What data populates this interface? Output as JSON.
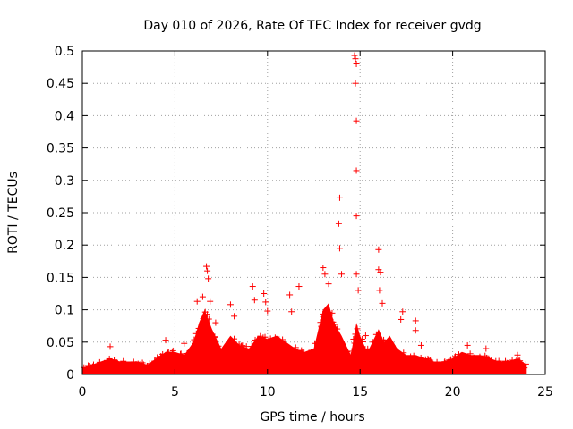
{
  "chart_data": {
    "type": "scatter",
    "title": "Day 010 of 2026, Rate Of TEC Index for receiver gvdg",
    "xlabel": "GPS time / hours",
    "ylabel": "ROTI / TECUs",
    "xlim": [
      0,
      25
    ],
    "ylim": [
      0,
      0.5
    ],
    "xticks": [
      "0",
      "5",
      "10",
      "15",
      "20",
      "25"
    ],
    "yticks": [
      "0",
      "0.05",
      "0.1",
      "0.15",
      "0.2",
      "0.25",
      "0.3",
      "0.35",
      "0.4",
      "0.45",
      "0.5"
    ],
    "grid": true,
    "marker": "+",
    "colors": {
      "series": "#ff0000",
      "grid": "#a0a0a0",
      "axis": "#000000"
    },
    "envelope": {
      "x": [
        0,
        0.5,
        1,
        1.5,
        2,
        2.5,
        3,
        3.5,
        4,
        4.5,
        5,
        5.5,
        6,
        6.3,
        6.6,
        7,
        7.5,
        8,
        8.5,
        9,
        9.5,
        10,
        10.5,
        11,
        11.5,
        12,
        12.5,
        13,
        13.3,
        13.6,
        14,
        14.5,
        14.8,
        15,
        15.3,
        15.5,
        16,
        16.3,
        16.6,
        17,
        17.5,
        18,
        18.5,
        19,
        19.5,
        20,
        20.5,
        21,
        21.5,
        22,
        22.5,
        23,
        23.5,
        24
      ],
      "y": [
        0.01,
        0.015,
        0.02,
        0.025,
        0.02,
        0.02,
        0.02,
        0.015,
        0.025,
        0.035,
        0.035,
        0.03,
        0.05,
        0.08,
        0.1,
        0.07,
        0.04,
        0.06,
        0.045,
        0.04,
        0.06,
        0.055,
        0.06,
        0.05,
        0.04,
        0.035,
        0.04,
        0.1,
        0.11,
        0.08,
        0.06,
        0.03,
        0.08,
        0.06,
        0.04,
        0.04,
        0.07,
        0.05,
        0.06,
        0.04,
        0.03,
        0.03,
        0.025,
        0.02,
        0.02,
        0.025,
        0.035,
        0.03,
        0.03,
        0.025,
        0.02,
        0.02,
        0.025,
        0.015
      ]
    },
    "highlights": [
      {
        "x": 1.5,
        "y": 0.043
      },
      {
        "x": 4.5,
        "y": 0.053
      },
      {
        "x": 5.5,
        "y": 0.048
      },
      {
        "x": 6.2,
        "y": 0.113
      },
      {
        "x": 6.5,
        "y": 0.12
      },
      {
        "x": 6.7,
        "y": 0.167
      },
      {
        "x": 6.75,
        "y": 0.16
      },
      {
        "x": 6.8,
        "y": 0.148
      },
      {
        "x": 6.9,
        "y": 0.113
      },
      {
        "x": 7.2,
        "y": 0.08
      },
      {
        "x": 8.0,
        "y": 0.108
      },
      {
        "x": 8.2,
        "y": 0.09
      },
      {
        "x": 9.2,
        "y": 0.136
      },
      {
        "x": 9.3,
        "y": 0.115
      },
      {
        "x": 9.8,
        "y": 0.125
      },
      {
        "x": 9.9,
        "y": 0.112
      },
      {
        "x": 10.0,
        "y": 0.098
      },
      {
        "x": 11.2,
        "y": 0.123
      },
      {
        "x": 11.7,
        "y": 0.136
      },
      {
        "x": 11.3,
        "y": 0.097
      },
      {
        "x": 13.0,
        "y": 0.165
      },
      {
        "x": 13.1,
        "y": 0.155
      },
      {
        "x": 13.3,
        "y": 0.14
      },
      {
        "x": 13.9,
        "y": 0.273
      },
      {
        "x": 13.85,
        "y": 0.233
      },
      {
        "x": 13.9,
        "y": 0.195
      },
      {
        "x": 14.0,
        "y": 0.155
      },
      {
        "x": 14.7,
        "y": 0.493
      },
      {
        "x": 14.75,
        "y": 0.488
      },
      {
        "x": 14.8,
        "y": 0.48
      },
      {
        "x": 14.75,
        "y": 0.45
      },
      {
        "x": 14.8,
        "y": 0.392
      },
      {
        "x": 14.8,
        "y": 0.315
      },
      {
        "x": 14.8,
        "y": 0.245
      },
      {
        "x": 14.8,
        "y": 0.155
      },
      {
        "x": 14.9,
        "y": 0.13
      },
      {
        "x": 15.3,
        "y": 0.06
      },
      {
        "x": 16.0,
        "y": 0.193
      },
      {
        "x": 16.0,
        "y": 0.162
      },
      {
        "x": 16.1,
        "y": 0.158
      },
      {
        "x": 16.05,
        "y": 0.13
      },
      {
        "x": 16.2,
        "y": 0.11
      },
      {
        "x": 17.3,
        "y": 0.097
      },
      {
        "x": 17.2,
        "y": 0.085
      },
      {
        "x": 18.0,
        "y": 0.083
      },
      {
        "x": 18.0,
        "y": 0.068
      },
      {
        "x": 18.3,
        "y": 0.045
      },
      {
        "x": 20.8,
        "y": 0.045
      },
      {
        "x": 21.8,
        "y": 0.04
      },
      {
        "x": 23.5,
        "y": 0.03
      }
    ]
  }
}
